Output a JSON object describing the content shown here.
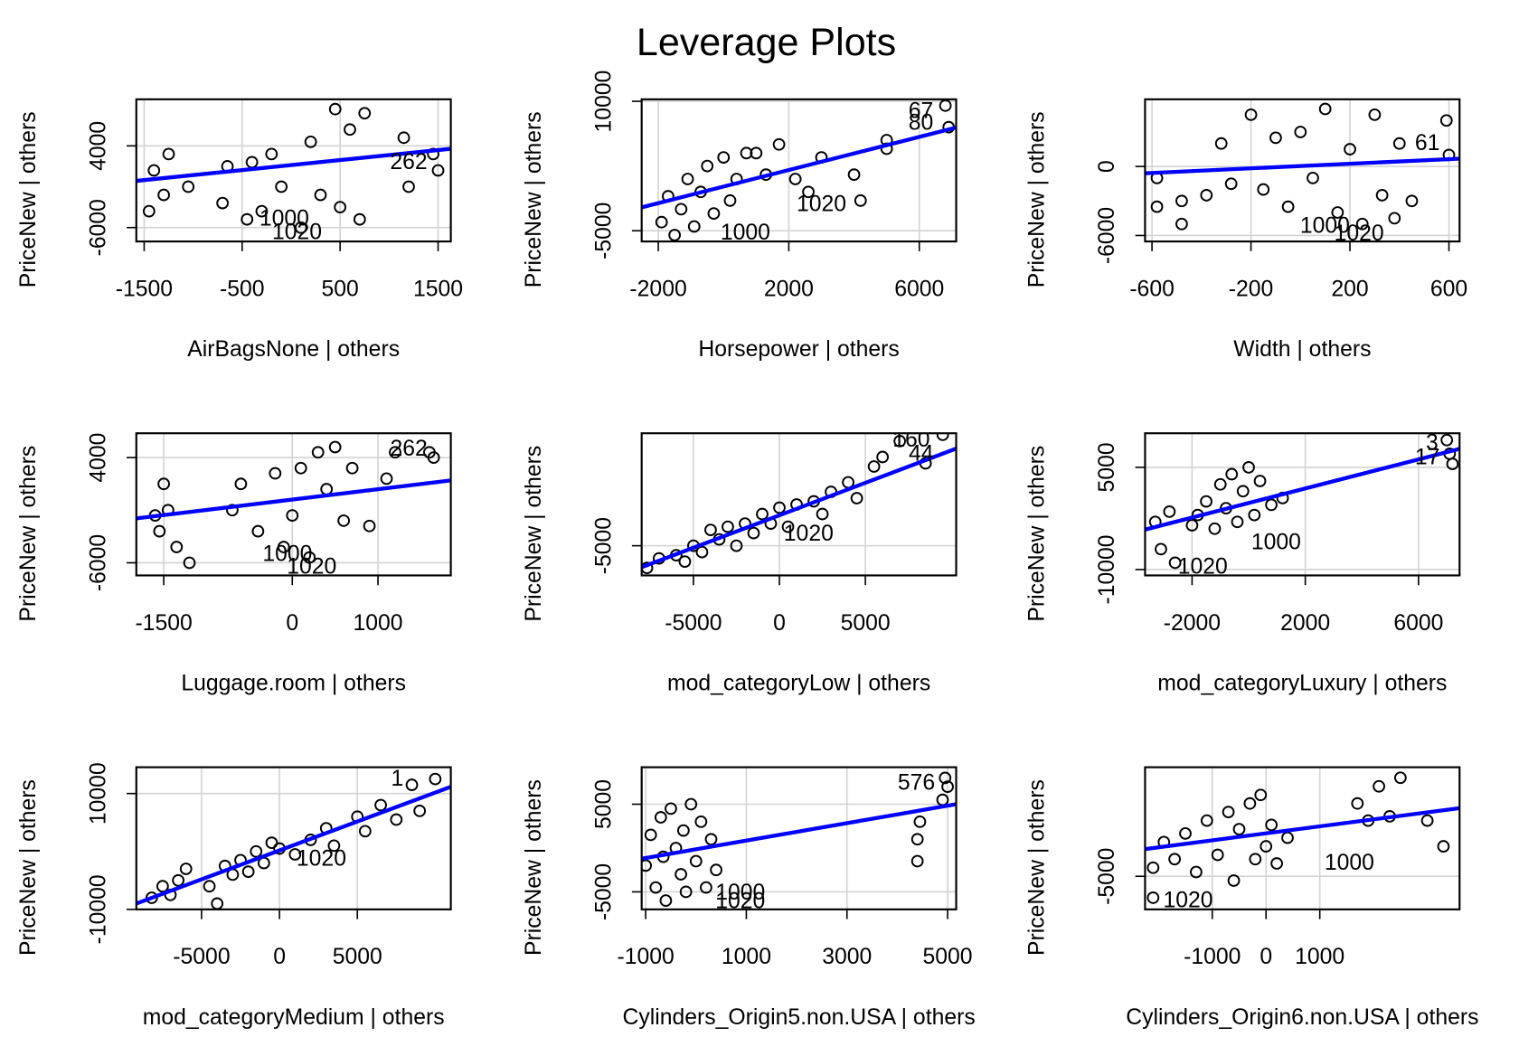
{
  "title": "Leverage Plots",
  "chart_data": [
    {
      "type": "scatter",
      "x_label": "AirBagsNone | others",
      "y_label": "PriceNew | others",
      "xlim": [
        -1580,
        1630
      ],
      "ylim": [
        -7700,
        9700
      ],
      "xticks": [
        -1500,
        -500,
        500,
        1500
      ],
      "yticks": [
        -6000,
        4000
      ],
      "grid": true,
      "color": "#000000",
      "x": [
        -1450,
        -1400,
        -1300,
        -1250,
        -1050,
        -700,
        -650,
        -450,
        -400,
        -300,
        -200,
        -100,
        100,
        200,
        300,
        450,
        500,
        600,
        700,
        750,
        1150,
        1200,
        1450,
        1500
      ],
      "y": [
        -4000,
        1000,
        -2000,
        3000,
        -1000,
        -3000,
        1500,
        -5000,
        2000,
        -4000,
        3000,
        -1000,
        -6000,
        4500,
        -2000,
        8500,
        -3500,
        6000,
        -5000,
        8000,
        5000,
        -1000,
        3000,
        1000
      ],
      "fit": {
        "x": [
          -1580,
          1630
        ],
        "y": [
          -286,
          3643
        ],
        "color": "#0000ff"
      },
      "point_labels": [
        {
          "text": "262",
          "x": 1200,
          "y": 1860
        },
        {
          "text": "1000",
          "x": -70,
          "y": -5050
        },
        {
          "text": "1020",
          "x": 60,
          "y": -6710
        }
      ]
    },
    {
      "type": "scatter",
      "x_label": "Horsepower | others",
      "y_label": "PriceNew | others",
      "xlim": [
        -2510,
        7130
      ],
      "ylim": [
        -6240,
        10230
      ],
      "xticks": [
        -2000,
        2000,
        6000
      ],
      "yticks": [
        -5000,
        10000
      ],
      "grid": true,
      "color": "#000000",
      "x": [
        -1900,
        -1700,
        -1500,
        -1300,
        -1100,
        -900,
        -700,
        -500,
        -300,
        0,
        200,
        400,
        700,
        1000,
        1300,
        1700,
        2200,
        2600,
        3000,
        4000,
        4200,
        5000,
        5000,
        6800,
        6900
      ],
      "y": [
        -4000,
        -1000,
        -5500,
        -2500,
        1000,
        -4500,
        -500,
        2500,
        -3000,
        3500,
        -1500,
        1000,
        4000,
        4000,
        1500,
        5000,
        1000,
        -500,
        3500,
        1500,
        -1500,
        5500,
        4500,
        9500,
        7000
      ],
      "fit": {
        "x": [
          -2510,
          7130
        ],
        "y": [
          -2290,
          6960
        ],
        "color": "#0000ff"
      },
      "point_labels": [
        {
          "text": "67",
          "x": 6050,
          "y": 8760
        },
        {
          "text": "80",
          "x": 6050,
          "y": 7400
        },
        {
          "text": "1020",
          "x": 3000,
          "y": -2060
        },
        {
          "text": "1000",
          "x": 670,
          "y": -5330
        }
      ]
    },
    {
      "type": "scatter",
      "x_label": "Width | others",
      "y_label": "PriceNew | others",
      "xlim": [
        -628,
        643
      ],
      "ylim": [
        -6520,
        5840
      ],
      "xticks": [
        -600,
        -200,
        200,
        600
      ],
      "yticks": [
        -6000,
        0
      ],
      "grid": true,
      "color": "#000000",
      "x": [
        -580,
        -580,
        -480,
        -480,
        -380,
        -320,
        -280,
        -200,
        -150,
        -100,
        -50,
        0,
        50,
        100,
        150,
        200,
        250,
        300,
        330,
        380,
        400,
        450,
        590,
        600
      ],
      "y": [
        -1000,
        -3500,
        -3000,
        -5000,
        -2500,
        2000,
        -1500,
        4500,
        -2000,
        2500,
        -3500,
        3000,
        -1000,
        5000,
        -4000,
        1500,
        -5000,
        4500,
        -2500,
        -4500,
        2000,
        -3000,
        4000,
        1000
      ],
      "fit": {
        "x": [
          -628,
          643
        ],
        "y": [
          -590,
          680
        ],
        "color": "#0000ff"
      },
      "point_labels": [
        {
          "text": "61",
          "x": 513,
          "y": 1950
        },
        {
          "text": "1000",
          "x": 99,
          "y": -5250
        },
        {
          "text": "1020",
          "x": 237,
          "y": -5930
        }
      ]
    },
    {
      "type": "scatter",
      "x_label": "Luggage.room | others",
      "y_label": "PriceNew | others",
      "xlim": [
        -1820,
        1850
      ],
      "ylim": [
        -7200,
        6310
      ],
      "xticks": [
        -1500,
        0,
        1000
      ],
      "yticks": [
        -6000,
        4000
      ],
      "grid": true,
      "color": "#000000",
      "x": [
        -1600,
        -1550,
        -1500,
        -1450,
        -1350,
        -1200,
        -700,
        -600,
        -400,
        -200,
        -100,
        0,
        100,
        200,
        300,
        400,
        500,
        600,
        700,
        900,
        1100,
        1200,
        1600,
        1650
      ],
      "y": [
        -1500,
        -3000,
        1500,
        -1000,
        -4500,
        -6000,
        -1000,
        1500,
        -3000,
        2500,
        -4500,
        -1500,
        3000,
        -5500,
        4500,
        1000,
        5000,
        -2000,
        3000,
        -2500,
        2000,
        4500,
        4500,
        4000
      ],
      "fit": {
        "x": [
          -1820,
          1850
        ],
        "y": [
          -1780,
          1830
        ],
        "color": "#0000ff"
      },
      "point_labels": [
        {
          "text": "262",
          "x": 1360,
          "y": 4740
        },
        {
          "text": "1000",
          "x": -57,
          "y": -5260
        },
        {
          "text": "1020",
          "x": 227,
          "y": -6460
        }
      ]
    },
    {
      "type": "scatter",
      "x_label": "mod_categoryLow | others",
      "y_label": "PriceNew | others",
      "xlim": [
        -8010,
        10280
      ],
      "ylim": [
        -9680,
        12740
      ],
      "xticks": [
        -5000,
        0,
        5000
      ],
      "yticks": [
        -5000
      ],
      "grid": true,
      "color": "#000000",
      "x": [
        -7700,
        -7000,
        -6000,
        -5500,
        -5000,
        -4500,
        -4000,
        -3500,
        -3000,
        -2500,
        -2000,
        -1500,
        -1000,
        -500,
        0,
        500,
        1000,
        2000,
        2500,
        3000,
        4000,
        4500,
        5500,
        6000,
        7000,
        8500,
        9500
      ],
      "y": [
        -8500,
        -7000,
        -6500,
        -7500,
        -5000,
        -6000,
        -2500,
        -4000,
        -2000,
        -5000,
        -1500,
        -3000,
        0,
        -1500,
        1000,
        -2000,
        1500,
        2000,
        0,
        3500,
        5000,
        2500,
        7500,
        9000,
        11500,
        8000,
        12500
      ],
      "fit": {
        "x": [
          -8010,
          10280
        ],
        "y": [
          -8390,
          10320
        ],
        "color": "#0000ff"
      },
      "point_labels": [
        {
          "text": "160",
          "x": 7670,
          "y": 11580
        },
        {
          "text": "44",
          "x": 8240,
          "y": 9330
        },
        {
          "text": "1020",
          "x": 1700,
          "y": -3230
        }
      ]
    },
    {
      "type": "scatter",
      "x_label": "mod_categoryLuxury | others",
      "y_label": "PriceNew | others",
      "xlim": [
        -3660,
        7450
      ],
      "ylim": [
        -10860,
        10000
      ],
      "xticks": [
        -2000,
        2000,
        6000
      ],
      "yticks": [
        -10000,
        5000
      ],
      "grid": true,
      "color": "#000000",
      "x": [
        -3300,
        -3100,
        -2800,
        -2600,
        -2000,
        -1800,
        -1500,
        -1200,
        -1000,
        -800,
        -600,
        -400,
        -200,
        0,
        200,
        400,
        800,
        1200,
        7000,
        7100,
        7200
      ],
      "y": [
        -3000,
        -7000,
        -1500,
        -9000,
        -3500,
        -2000,
        0,
        -4000,
        2500,
        -1000,
        4000,
        -3000,
        1500,
        5000,
        -2000,
        3000,
        -500,
        500,
        9000,
        7000,
        5500
      ],
      "fit": {
        "x": [
          -3660,
          7450
        ],
        "y": [
          -4140,
          7710
        ],
        "color": "#0000ff"
      },
      "point_labels": [
        {
          "text": "3",
          "x": 6480,
          "y": 8430
        },
        {
          "text": "17",
          "x": 6310,
          "y": 6290
        },
        {
          "text": "1000",
          "x": 970,
          "y": -6140
        },
        {
          "text": "1020",
          "x": -1620,
          "y": -9720
        }
      ]
    },
    {
      "type": "scatter",
      "x_label": "mod_categoryMedium | others",
      "y_label": "PriceNew | others",
      "xlim": [
        -9190,
        11000
      ],
      "ylim": [
        -10000,
        14540
      ],
      "xticks": [
        -5000,
        0,
        5000
      ],
      "yticks": [
        -10000,
        10000
      ],
      "grid": true,
      "color": "#000000",
      "x": [
        -8200,
        -7500,
        -7000,
        -6500,
        -6000,
        -4500,
        -4000,
        -3500,
        -3000,
        -2500,
        -2000,
        -1500,
        -1000,
        -500,
        0,
        1000,
        2000,
        3000,
        3500,
        5000,
        5500,
        6500,
        7500,
        8500,
        9000,
        10000
      ],
      "y": [
        -8000,
        -6000,
        -7500,
        -5000,
        -3000,
        -6000,
        -9000,
        -2500,
        -4000,
        -1500,
        -3500,
        0,
        -2000,
        1500,
        500,
        -500,
        2000,
        4000,
        1000,
        6000,
        3500,
        8000,
        5500,
        11500,
        7000,
        12500
      ],
      "fit": {
        "x": [
          -9190,
          11000
        ],
        "y": [
          -9000,
          11160
        ],
        "color": "#0000ff"
      },
      "point_labels": [
        {
          "text": "1",
          "x": 7560,
          "y": 12350
        },
        {
          "text": "1020",
          "x": 2690,
          "y": -1420
        }
      ]
    },
    {
      "type": "scatter",
      "x_label": "Cylinders_Origin5.non.USA | others",
      "y_label": "PriceNew | others",
      "xlim": [
        -1080,
        5170
      ],
      "ylim": [
        -7000,
        9220
      ],
      "xticks": [
        -1000,
        1000,
        3000,
        5000
      ],
      "yticks": [
        -5000,
        5000
      ],
      "grid": true,
      "color": "#000000",
      "x": [
        -1000,
        -900,
        -800,
        -700,
        -650,
        -600,
        -500,
        -400,
        -300,
        -250,
        -200,
        -100,
        0,
        100,
        200,
        300,
        400,
        4400,
        4400,
        4450,
        4900,
        4950,
        5000
      ],
      "y": [
        -2000,
        1500,
        -4500,
        3500,
        -1000,
        -6000,
        4500,
        0,
        -3000,
        2000,
        -5000,
        5000,
        -1500,
        3000,
        -4500,
        1000,
        -2500,
        1000,
        -1500,
        3000,
        5500,
        8000,
        7000
      ],
      "fit": {
        "x": [
          -1080,
          5170
        ],
        "y": [
          -1220,
          5000
        ],
        "color": "#0000ff"
      },
      "point_labels": [
        {
          "text": "576",
          "x": 4380,
          "y": 7330
        },
        {
          "text": "1000",
          "x": 880,
          "y": -5210
        },
        {
          "text": "1020",
          "x": 880,
          "y": -6210
        }
      ]
    },
    {
      "type": "scatter",
      "x_label": "Cylinders_Origin6.non.USA | others",
      "y_label": "PriceNew | others",
      "xlim": [
        -2250,
        3600
      ],
      "ylim": [
        -8860,
        7730
      ],
      "xticks": [
        -1000,
        0,
        1000
      ],
      "yticks": [
        -5000
      ],
      "grid": true,
      "color": "#000000",
      "x": [
        -2100,
        -2100,
        -1900,
        -1700,
        -1500,
        -1300,
        -1100,
        -900,
        -700,
        -600,
        -500,
        -300,
        -200,
        -100,
        0,
        100,
        200,
        400,
        1700,
        1900,
        2100,
        2300,
        2500,
        3000,
        3300
      ],
      "y": [
        -4000,
        -7500,
        -1000,
        -3000,
        0,
        -4500,
        1500,
        -2500,
        2500,
        -5500,
        500,
        3500,
        -3000,
        4500,
        -1500,
        1000,
        -3500,
        -500,
        3500,
        1500,
        5500,
        2000,
        6500,
        1500,
        -1500
      ],
      "fit": {
        "x": [
          -2250,
          3600
        ],
        "y": [
          -1820,
          2950
        ],
        "color": "#0000ff"
      },
      "point_labels": [
        {
          "text": "1000",
          "x": 1550,
          "y": -3520
        },
        {
          "text": "1020",
          "x": -1450,
          "y": -7950
        }
      ]
    }
  ]
}
